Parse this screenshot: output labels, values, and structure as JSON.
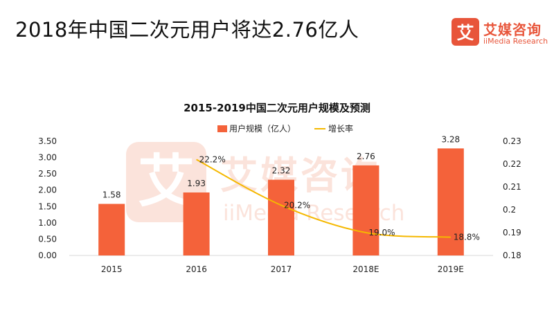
{
  "header": {
    "title": "2018年中国二次元用户将达2.76亿人"
  },
  "logo": {
    "mark": "艾",
    "name": "艾媒咨询",
    "name_en": "iiMedia Research"
  },
  "watermark": {
    "mark": "艾",
    "text_cn": "艾媒咨询",
    "text_en": "iiMedia Research"
  },
  "chart_data": {
    "type": "bar",
    "title": "2015-2019中国二次元用户规模及预测",
    "categories": [
      "2015",
      "2016",
      "2017",
      "2018E",
      "2019E"
    ],
    "legend_position": "top-center",
    "grid": false,
    "bar_color": "#f4623a",
    "line_color": "#f5b800",
    "series": [
      {
        "name": "用户规模（亿人）",
        "kind": "bar",
        "axis": "left",
        "values": [
          1.58,
          1.93,
          2.32,
          2.76,
          3.28
        ],
        "labels": [
          "1.58",
          "1.93",
          "2.32",
          "2.76",
          "3.28"
        ]
      },
      {
        "name": "增长率",
        "kind": "line",
        "axis": "right",
        "values": [
          null,
          0.222,
          0.202,
          0.19,
          0.188
        ],
        "labels": [
          "",
          "22.2%",
          "20.2%",
          "19.0%",
          "18.8%"
        ]
      }
    ],
    "y_left": {
      "ylim": [
        0,
        3.5
      ],
      "ticks": [
        "0.00",
        "0.50",
        "1.00",
        "1.50",
        "2.00",
        "2.50",
        "3.00",
        "3.50"
      ]
    },
    "y_right": {
      "ylim": [
        0.18,
        0.23
      ],
      "ticks": [
        "0.18",
        "0.19",
        "0.2",
        "0.21",
        "0.22",
        "0.23"
      ]
    }
  }
}
